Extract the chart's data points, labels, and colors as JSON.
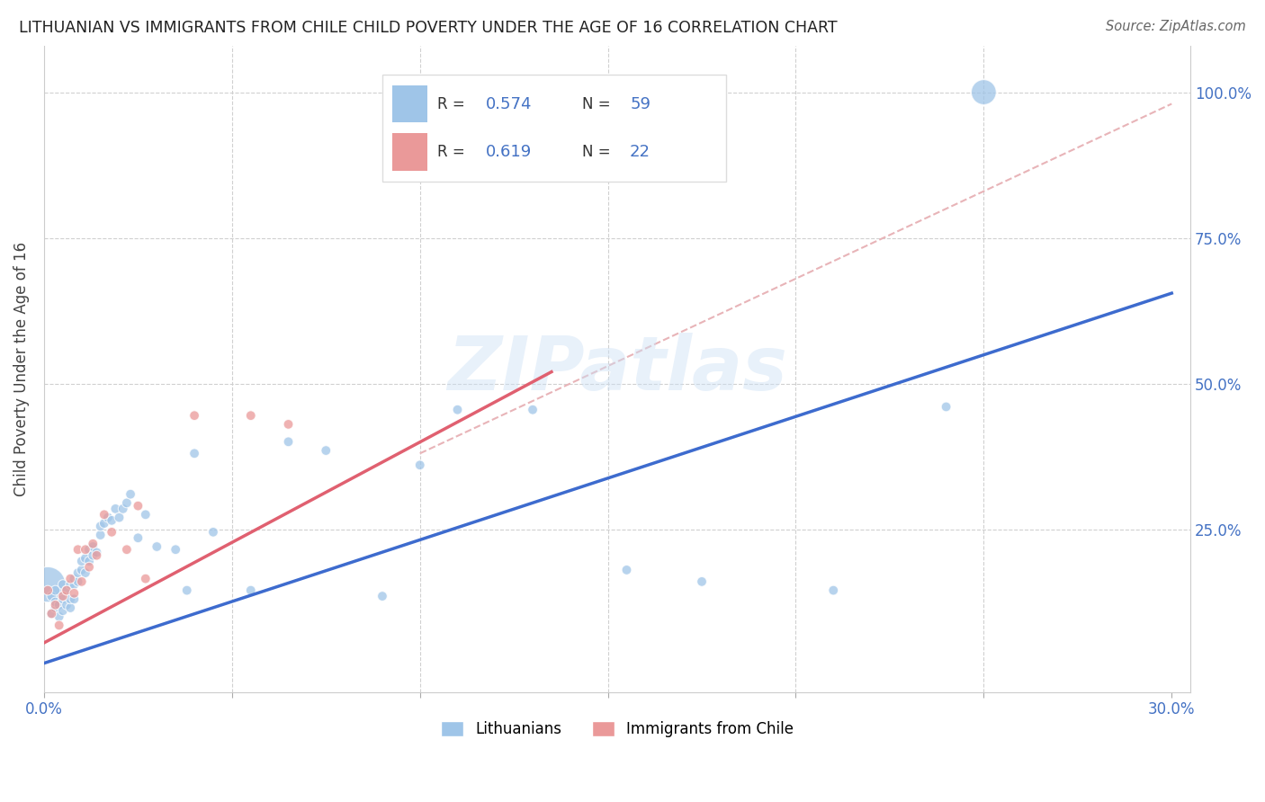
{
  "title": "LITHUANIAN VS IMMIGRANTS FROM CHILE CHILD POVERTY UNDER THE AGE OF 16 CORRELATION CHART",
  "source": "Source: ZipAtlas.com",
  "ylabel": "Child Poverty Under the Age of 16",
  "R1": 0.574,
  "N1": 59,
  "R2": 0.619,
  "N2": 22,
  "blue_color": "#9fc5e8",
  "pink_color": "#ea9999",
  "blue_line_color": "#3d6bce",
  "pink_line_color": "#e06070",
  "dashed_color": "#e8b4b8",
  "axis_color": "#4472c4",
  "watermark": "ZIPatlas",
  "legend1_label": "Lithuanians",
  "legend2_label": "Immigrants from Chile",
  "blue_line_x": [
    0.0,
    0.3
  ],
  "blue_line_y": [
    0.02,
    0.655
  ],
  "pink_line_x": [
    0.0,
    0.135
  ],
  "pink_line_y": [
    0.055,
    0.52
  ],
  "dashed_line_x": [
    0.1,
    0.3
  ],
  "dashed_line_y": [
    0.38,
    0.98
  ],
  "blue_scatter_x": [
    0.001,
    0.002,
    0.002,
    0.003,
    0.003,
    0.003,
    0.004,
    0.004,
    0.005,
    0.005,
    0.005,
    0.006,
    0.006,
    0.007,
    0.007,
    0.007,
    0.008,
    0.008,
    0.008,
    0.009,
    0.009,
    0.01,
    0.01,
    0.011,
    0.011,
    0.012,
    0.012,
    0.013,
    0.013,
    0.014,
    0.015,
    0.015,
    0.016,
    0.017,
    0.018,
    0.019,
    0.02,
    0.021,
    0.022,
    0.023,
    0.025,
    0.027,
    0.03,
    0.035,
    0.038,
    0.04,
    0.045,
    0.055,
    0.065,
    0.075,
    0.09,
    0.1,
    0.11,
    0.13,
    0.155,
    0.175,
    0.21,
    0.24,
    0.25
  ],
  "blue_scatter_y": [
    0.155,
    0.135,
    0.105,
    0.115,
    0.125,
    0.145,
    0.1,
    0.12,
    0.11,
    0.13,
    0.155,
    0.12,
    0.145,
    0.115,
    0.13,
    0.155,
    0.13,
    0.155,
    0.165,
    0.16,
    0.175,
    0.18,
    0.195,
    0.175,
    0.2,
    0.195,
    0.215,
    0.205,
    0.22,
    0.21,
    0.24,
    0.255,
    0.26,
    0.27,
    0.265,
    0.285,
    0.27,
    0.285,
    0.295,
    0.31,
    0.235,
    0.275,
    0.22,
    0.215,
    0.145,
    0.38,
    0.245,
    0.145,
    0.4,
    0.385,
    0.135,
    0.36,
    0.455,
    0.455,
    0.18,
    0.16,
    0.145,
    0.46,
    1.0
  ],
  "blue_scatter_sizes": [
    800,
    60,
    60,
    60,
    60,
    60,
    60,
    60,
    60,
    60,
    60,
    60,
    60,
    60,
    60,
    60,
    60,
    60,
    60,
    60,
    60,
    60,
    60,
    60,
    60,
    60,
    60,
    60,
    60,
    60,
    60,
    60,
    60,
    60,
    60,
    60,
    60,
    60,
    60,
    60,
    60,
    60,
    60,
    60,
    60,
    60,
    60,
    60,
    60,
    60,
    60,
    60,
    60,
    60,
    60,
    60,
    60,
    60,
    400
  ],
  "pink_scatter_x": [
    0.001,
    0.002,
    0.003,
    0.004,
    0.005,
    0.006,
    0.007,
    0.008,
    0.009,
    0.01,
    0.011,
    0.012,
    0.013,
    0.014,
    0.016,
    0.018,
    0.022,
    0.025,
    0.027,
    0.04,
    0.055,
    0.065
  ],
  "pink_scatter_y": [
    0.145,
    0.105,
    0.12,
    0.085,
    0.135,
    0.145,
    0.165,
    0.14,
    0.215,
    0.16,
    0.215,
    0.185,
    0.225,
    0.205,
    0.275,
    0.245,
    0.215,
    0.29,
    0.165,
    0.445,
    0.445,
    0.43
  ],
  "pink_scatter_sizes": [
    60,
    60,
    60,
    60,
    60,
    60,
    60,
    60,
    60,
    60,
    60,
    60,
    60,
    60,
    60,
    60,
    60,
    60,
    60,
    60,
    60,
    60
  ],
  "xlim": [
    0.0,
    0.305
  ],
  "ylim": [
    -0.03,
    1.08
  ],
  "xticks": [
    0.0,
    0.05,
    0.1,
    0.15,
    0.2,
    0.25,
    0.3
  ],
  "yticks": [
    0.0,
    0.25,
    0.5,
    0.75,
    1.0
  ]
}
